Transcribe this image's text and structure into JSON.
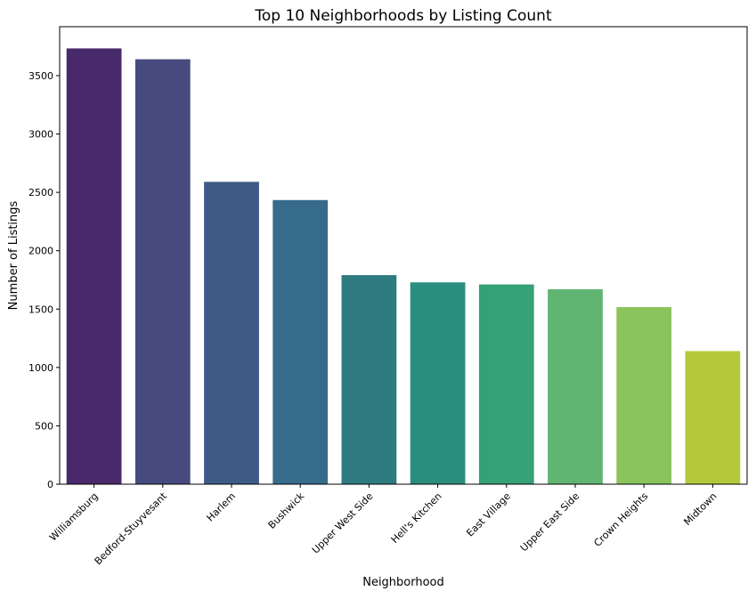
{
  "chart_data": {
    "type": "bar",
    "title": "Top 10 Neighborhoods by Listing Count",
    "xlabel": "Neighborhood",
    "ylabel": "Number of Listings",
    "categories": [
      "Williamsburg",
      "Bedford-Stuyvesant",
      "Harlem",
      "Bushwick",
      "Upper West Side",
      "Hell's Kitchen",
      "East Village",
      "Upper East Side",
      "Crown Heights",
      "Midtown"
    ],
    "values": [
      3733,
      3640,
      2590,
      2434,
      1791,
      1729,
      1711,
      1670,
      1517,
      1140
    ],
    "colors": [
      "#482a6c",
      "#474a7f",
      "#3e5a87",
      "#366b8b",
      "#2e7b81",
      "#2a8e7e",
      "#36a176",
      "#61b573",
      "#8ac45c",
      "#b3c93a"
    ],
    "yticks": [
      0,
      500,
      1000,
      1500,
      2000,
      2500,
      3000,
      3500
    ],
    "ylim": [
      0,
      3919
    ],
    "grid": false,
    "legend": "none"
  }
}
